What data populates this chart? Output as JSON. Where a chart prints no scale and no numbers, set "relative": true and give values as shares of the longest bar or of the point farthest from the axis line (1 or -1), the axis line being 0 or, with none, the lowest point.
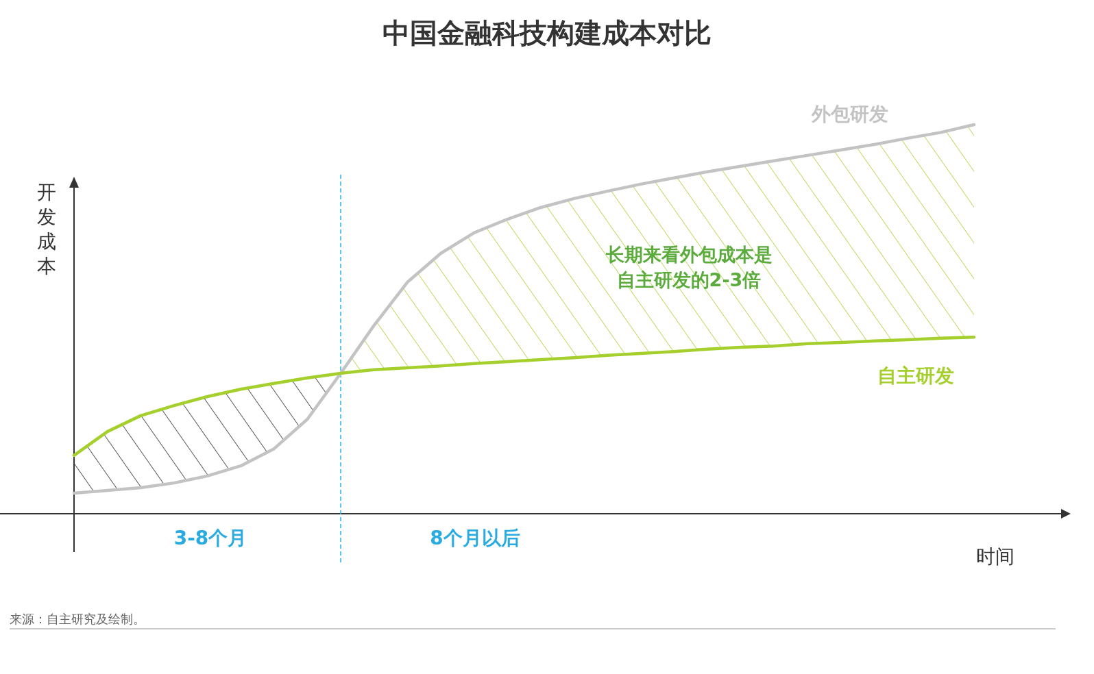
{
  "chart_data": {
    "type": "line",
    "title": "中国金融科技构建成本对比",
    "xlabel": "时间",
    "ylabel": "开发成本",
    "relative": true,
    "categories": [
      null,
      null,
      null,
      null,
      null,
      null,
      null,
      null,
      null,
      null,
      null,
      null,
      null,
      null,
      null,
      null,
      null,
      null,
      null,
      null,
      null,
      null,
      null,
      null,
      null,
      null,
      null,
      null
    ],
    "series": [
      {
        "name": "外包研发",
        "color": "#c3c3c3",
        "values": [
          0.053,
          0.06,
          0.067,
          0.079,
          0.097,
          0.123,
          0.167,
          0.243,
          0.361,
          0.484,
          0.595,
          0.669,
          0.722,
          0.757,
          0.787,
          0.81,
          0.829,
          0.847,
          0.863,
          0.879,
          0.893,
          0.907,
          0.921,
          0.935,
          0.949,
          0.965,
          0.98,
          1
        ]
      },
      {
        "name": "自主研发",
        "color": "#a5cf2d",
        "values": [
          0.15,
          0.211,
          0.252,
          0.278,
          0.301,
          0.32,
          0.335,
          0.349,
          0.361,
          0.37,
          0.375,
          0.38,
          0.386,
          0.391,
          0.396,
          0.401,
          0.407,
          0.412,
          0.417,
          0.423,
          0.428,
          0.431,
          0.437,
          0.44,
          0.444,
          0.447,
          0.451,
          0.454
        ]
      }
    ],
    "annotations": [
      "长期来看外包成本是自主研发的2-3倍",
      "3-8个月",
      "8个月以后",
      "来源：自主研究及绘制。"
    ]
  }
}
